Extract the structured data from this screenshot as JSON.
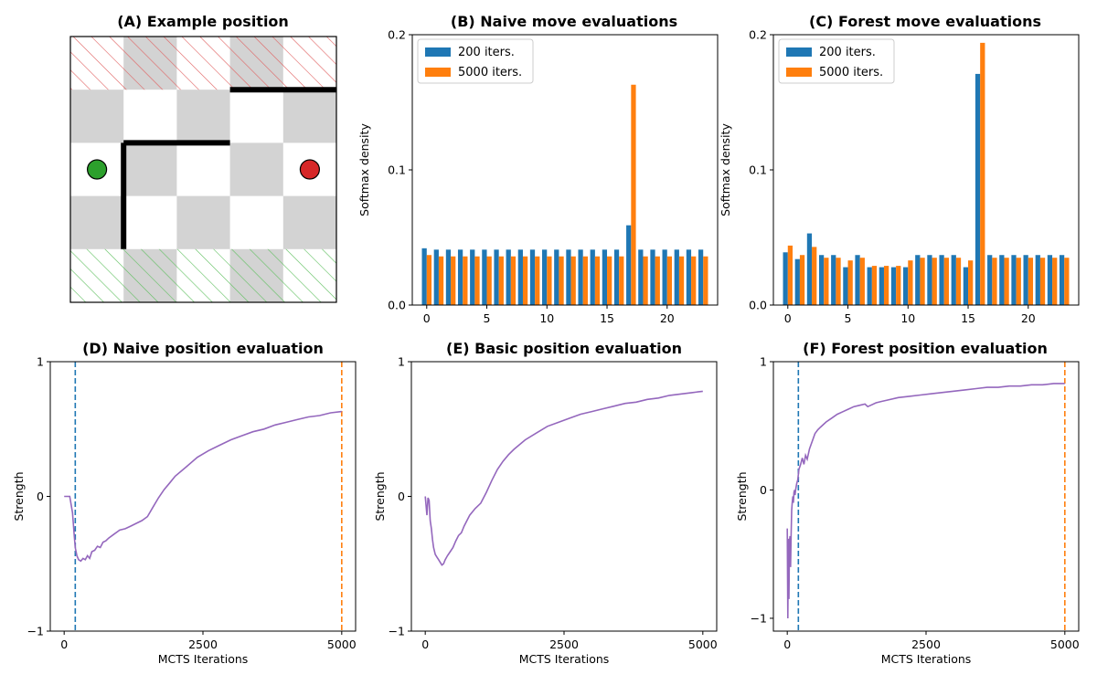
{
  "panels": {
    "a": {
      "title": "(A) Example position"
    },
    "b": {
      "title": "(B) Naive move evaluations"
    },
    "c": {
      "title": "(C) Forest move evaluations"
    },
    "d": {
      "title": "(D) Naive position evaluation"
    },
    "e": {
      "title": "(E) Basic position evaluation"
    },
    "f": {
      "title": "(F) Forest position evaluation"
    }
  },
  "colors": {
    "series_200": "#1f77b4",
    "series_5000": "#ff7f0e",
    "curve": "#9467bd",
    "green_player": "#2ca02c",
    "red_player": "#d62728",
    "shaded_square": "#d3d3d3"
  },
  "board": {
    "cols": 5,
    "rows": 5,
    "red_goal_row": "top",
    "green_goal_row": "bottom",
    "green_pawn": {
      "row": 2,
      "col": 0
    },
    "red_pawn": {
      "row": 2,
      "col": 4
    },
    "walls": [
      {
        "orientation": "horizontal",
        "row_line": 1,
        "from_col": 3,
        "to_col": 5
      },
      {
        "orientation": "horizontal",
        "row_line": 2,
        "from_col": 1,
        "to_col": 3
      },
      {
        "orientation": "vertical",
        "col_line": 1,
        "from_row": 2,
        "to_row": 4
      }
    ]
  },
  "chart_data": [
    {
      "id": "B",
      "type": "bar",
      "title": "(B) Naive move evaluations",
      "ylabel": "Softmax density",
      "xlabel": "",
      "x": [
        0,
        1,
        2,
        3,
        4,
        5,
        6,
        7,
        8,
        9,
        10,
        11,
        12,
        13,
        14,
        15,
        16,
        17,
        18,
        19,
        20,
        21,
        22,
        23
      ],
      "xticks": [
        0,
        5,
        10,
        15,
        20
      ],
      "yticks": [
        0.0,
        0.1,
        0.2
      ],
      "ytick_labels": [
        "0.0",
        "0.1",
        "0.2"
      ],
      "ylim": [
        0,
        0.2
      ],
      "xlim": [
        -1.2,
        24.2
      ],
      "legend": "top-left",
      "series": [
        {
          "name": "200 iters.",
          "values": [
            0.042,
            0.041,
            0.041,
            0.041,
            0.041,
            0.041,
            0.041,
            0.041,
            0.041,
            0.041,
            0.041,
            0.041,
            0.041,
            0.041,
            0.041,
            0.041,
            0.041,
            0.059,
            0.041,
            0.041,
            0.041,
            0.041,
            0.041,
            0.041
          ]
        },
        {
          "name": "5000 iters.",
          "values": [
            0.037,
            0.036,
            0.036,
            0.036,
            0.036,
            0.036,
            0.036,
            0.036,
            0.036,
            0.036,
            0.036,
            0.036,
            0.036,
            0.036,
            0.036,
            0.036,
            0.036,
            0.163,
            0.036,
            0.036,
            0.036,
            0.036,
            0.036,
            0.036
          ]
        }
      ]
    },
    {
      "id": "C",
      "type": "bar",
      "title": "(C) Forest move evaluations",
      "ylabel": "Softmax density",
      "xlabel": "",
      "x": [
        0,
        1,
        2,
        3,
        4,
        5,
        6,
        7,
        8,
        9,
        10,
        11,
        12,
        13,
        14,
        15,
        16,
        17,
        18,
        19,
        20,
        21,
        22,
        23
      ],
      "xticks": [
        0,
        5,
        10,
        15,
        20
      ],
      "yticks": [
        0.0,
        0.1,
        0.2
      ],
      "ytick_labels": [
        "0.0",
        "0.1",
        "0.2"
      ],
      "ylim": [
        0,
        0.2
      ],
      "xlim": [
        -1.2,
        24.2
      ],
      "legend": "top-left",
      "series": [
        {
          "name": "200 iters.",
          "values": [
            0.039,
            0.034,
            0.053,
            0.037,
            0.037,
            0.028,
            0.037,
            0.028,
            0.028,
            0.028,
            0.028,
            0.037,
            0.037,
            0.037,
            0.037,
            0.028,
            0.171,
            0.037,
            0.037,
            0.037,
            0.037,
            0.037,
            0.037,
            0.037
          ]
        },
        {
          "name": "5000 iters.",
          "values": [
            0.044,
            0.037,
            0.043,
            0.035,
            0.035,
            0.033,
            0.035,
            0.029,
            0.029,
            0.029,
            0.033,
            0.035,
            0.035,
            0.035,
            0.035,
            0.033,
            0.194,
            0.035,
            0.035,
            0.035,
            0.035,
            0.035,
            0.035,
            0.035
          ]
        }
      ]
    },
    {
      "id": "D",
      "type": "line",
      "title": "(D) Naive position evaluation",
      "xlabel": "MCTS Iterations",
      "ylabel": "Strength",
      "xticks": [
        0,
        2500,
        5000
      ],
      "yticks": [
        -1,
        0,
        1
      ],
      "xlim": [
        -250,
        5250
      ],
      "ylim": [
        -1,
        1
      ],
      "vlines": [
        {
          "x": 200,
          "color": "#1f77b4"
        },
        {
          "x": 5000,
          "color": "#ff7f0e"
        }
      ],
      "series": [
        {
          "x": [
            0,
            100,
            150,
            180,
            200,
            230,
            260,
            300,
            340,
            380,
            420,
            460,
            500,
            550,
            600,
            650,
            700,
            750,
            800,
            900,
            1000,
            1100,
            1200,
            1300,
            1400,
            1500,
            1600,
            1700,
            1800,
            1900,
            2000,
            2200,
            2400,
            2600,
            2800,
            3000,
            3200,
            3400,
            3600,
            3800,
            4000,
            4200,
            4400,
            4600,
            4800,
            5000
          ],
          "y": [
            0,
            0,
            -0.12,
            -0.28,
            -0.38,
            -0.44,
            -0.47,
            -0.48,
            -0.46,
            -0.47,
            -0.44,
            -0.46,
            -0.41,
            -0.4,
            -0.37,
            -0.38,
            -0.34,
            -0.33,
            -0.31,
            -0.28,
            -0.25,
            -0.24,
            -0.22,
            -0.2,
            -0.18,
            -0.15,
            -0.08,
            -0.01,
            0.05,
            0.1,
            0.15,
            0.22,
            0.29,
            0.34,
            0.38,
            0.42,
            0.45,
            0.48,
            0.5,
            0.53,
            0.55,
            0.57,
            0.59,
            0.6,
            0.62,
            0.63
          ]
        }
      ]
    },
    {
      "id": "E",
      "type": "line",
      "title": "(E) Basic position evaluation",
      "xlabel": "MCTS Iterations",
      "ylabel": "Strength",
      "xticks": [
        0,
        2500,
        5000
      ],
      "yticks": [
        -1,
        0,
        1
      ],
      "xlim": [
        -250,
        5250
      ],
      "ylim": [
        -1,
        1
      ],
      "vlines": [],
      "series": [
        {
          "x": [
            0,
            30,
            50,
            70,
            90,
            110,
            130,
            150,
            180,
            210,
            240,
            270,
            300,
            330,
            360,
            400,
            450,
            500,
            550,
            600,
            650,
            700,
            800,
            900,
            1000,
            1100,
            1200,
            1300,
            1400,
            1500,
            1600,
            1800,
            2000,
            2200,
            2400,
            2600,
            2800,
            3000,
            3200,
            3400,
            3600,
            3800,
            4000,
            4200,
            4400,
            4600,
            4800,
            5000
          ],
          "y": [
            0,
            -0.14,
            -0.01,
            -0.03,
            -0.18,
            -0.24,
            -0.32,
            -0.38,
            -0.43,
            -0.45,
            -0.47,
            -0.49,
            -0.51,
            -0.5,
            -0.47,
            -0.44,
            -0.41,
            -0.38,
            -0.33,
            -0.29,
            -0.27,
            -0.22,
            -0.14,
            -0.09,
            -0.05,
            0.03,
            0.12,
            0.2,
            0.26,
            0.31,
            0.35,
            0.42,
            0.47,
            0.52,
            0.55,
            0.58,
            0.61,
            0.63,
            0.65,
            0.67,
            0.69,
            0.7,
            0.72,
            0.73,
            0.75,
            0.76,
            0.77,
            0.78
          ]
        }
      ]
    },
    {
      "id": "F",
      "type": "line",
      "title": "(F) Forest position evaluation",
      "xlabel": "MCTS Iterations",
      "ylabel": "Strength",
      "xticks": [
        0,
        2500,
        5000
      ],
      "yticks": [
        -1,
        0,
        1
      ],
      "xlim": [
        -250,
        5250
      ],
      "ylim": [
        -1.1,
        1
      ],
      "vlines": [
        {
          "x": 200,
          "color": "#1f77b4"
        },
        {
          "x": 5000,
          "color": "#ff7f0e"
        }
      ],
      "series": [
        {
          "x": [
            0,
            10,
            20,
            30,
            40,
            50,
            60,
            70,
            80,
            90,
            100,
            110,
            120,
            130,
            140,
            150,
            170,
            190,
            210,
            240,
            270,
            300,
            330,
            360,
            400,
            450,
            500,
            550,
            600,
            700,
            800,
            900,
            1000,
            1100,
            1200,
            1300,
            1400,
            1450,
            1500,
            1600,
            1700,
            1800,
            2000,
            2200,
            2400,
            2600,
            2800,
            3000,
            3200,
            3400,
            3600,
            3800,
            4000,
            4200,
            4400,
            4600,
            4800,
            5000
          ],
          "y": [
            -0.3,
            -1.0,
            -0.38,
            -0.85,
            -0.4,
            -0.36,
            -0.6,
            -0.35,
            -0.16,
            -0.1,
            -0.05,
            -0.1,
            -0.02,
            0.0,
            -0.04,
            0.0,
            0.05,
            0.08,
            0.16,
            0.2,
            0.25,
            0.2,
            0.27,
            0.24,
            0.32,
            0.38,
            0.44,
            0.47,
            0.49,
            0.53,
            0.56,
            0.59,
            0.61,
            0.63,
            0.65,
            0.66,
            0.67,
            0.65,
            0.66,
            0.68,
            0.69,
            0.7,
            0.72,
            0.73,
            0.74,
            0.75,
            0.76,
            0.77,
            0.78,
            0.79,
            0.8,
            0.8,
            0.81,
            0.81,
            0.82,
            0.82,
            0.83,
            0.83
          ]
        }
      ]
    }
  ]
}
